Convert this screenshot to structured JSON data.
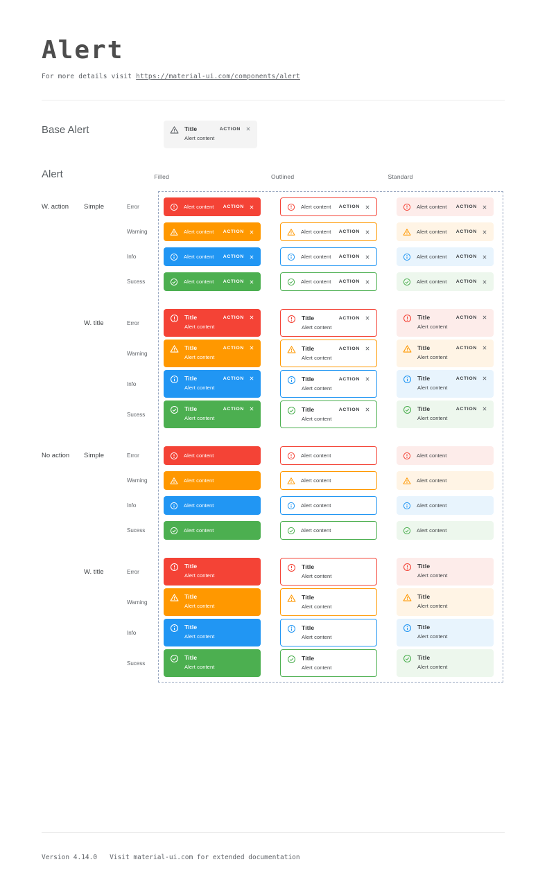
{
  "page": {
    "title": "Alert",
    "subtitle_prefix": "For more details visit",
    "subtitle_link": "https://material-ui.com/components/alert",
    "footer_version": "Version 4.14.0",
    "footer_note": "Visit material-ui.com for extended documentation"
  },
  "base_alert_section": {
    "heading": "Base Alert",
    "alert": {
      "icon": "warning-icon",
      "title": "Title",
      "content": "Alert content",
      "action_label": "ACTION",
      "close_icon": "close-icon",
      "bg_color": "#f4f4f4",
      "icon_color": "#5f6368",
      "close_color": "#80868b"
    }
  },
  "alert_matrix": {
    "heading": "Alert",
    "column_headers": [
      "Filled",
      "Outlined",
      "Standard"
    ],
    "variants": [
      "filled",
      "outlined",
      "standard"
    ],
    "row_groups": [
      {
        "group_label": "W. action",
        "with_action": true,
        "subgroups": [
          {
            "label": "Simple",
            "with_title": false
          },
          {
            "label": "W. title",
            "with_title": true
          }
        ]
      },
      {
        "group_label": "No action",
        "with_action": false,
        "subgroups": [
          {
            "label": "Simple",
            "with_title": false
          },
          {
            "label": "W. title",
            "with_title": true
          }
        ]
      }
    ],
    "severities": [
      {
        "key": "error",
        "label": "Error",
        "icon": "error-icon",
        "color": "#f44336",
        "standard_bg": "#fdecea"
      },
      {
        "key": "warning",
        "label": "Warning",
        "icon": "warning-icon",
        "color": "#ff9800",
        "standard_bg": "#fff4e5"
      },
      {
        "key": "info",
        "label": "Info",
        "icon": "info-icon",
        "color": "#2196f3",
        "standard_bg": "#e8f4fd"
      },
      {
        "key": "success",
        "label": "Sucess",
        "icon": "success-icon",
        "color": "#4caf50",
        "standard_bg": "#edf7ed"
      }
    ],
    "alert_title": "Title",
    "alert_content": "Alert content",
    "action_label": "ACTION",
    "close_icon": "close-icon"
  },
  "colors": {
    "dashed_border": "#97a6c0",
    "filled_text": "#ffffff",
    "neutral_title": "#2f3133",
    "neutral_text": "#3d4043",
    "neutral_close": "#5f6368",
    "label_gray": "#5f6368"
  }
}
